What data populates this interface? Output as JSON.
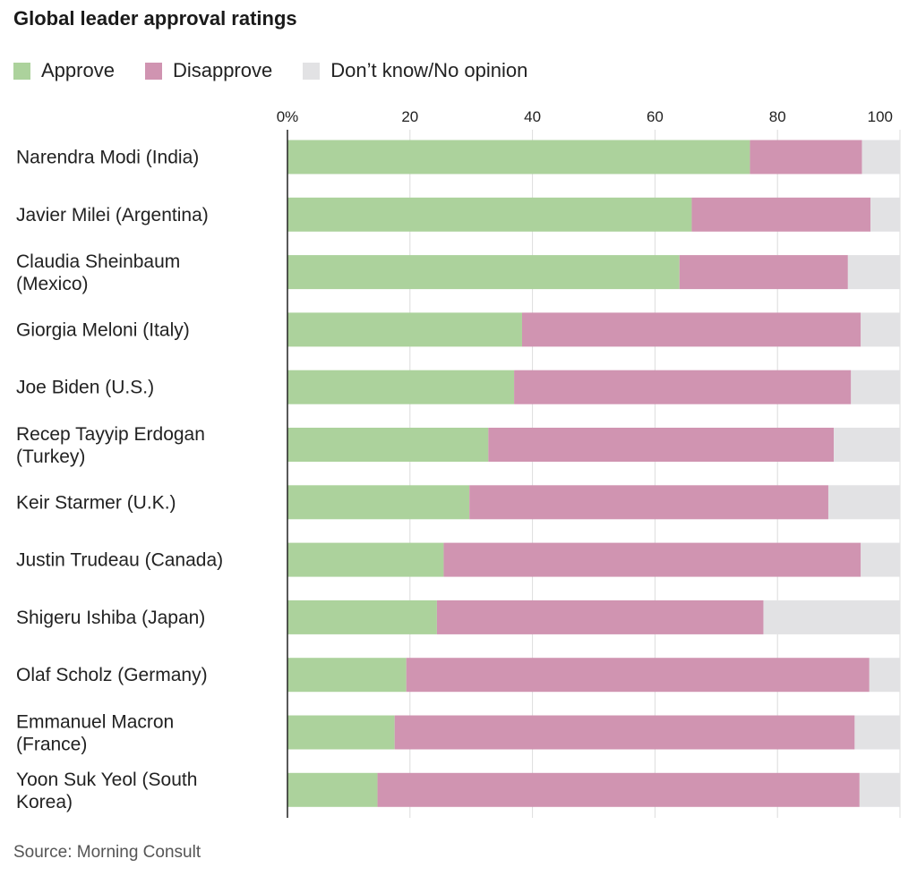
{
  "title": "Global leader approval ratings",
  "source": "Source: Morning Consult",
  "colors": {
    "approve": "#acd29c",
    "disapprove": "#d094b1",
    "no_opinion": "#e2e2e4",
    "grid": "#dcdcdc",
    "axis": "#222222"
  },
  "legend": {
    "approve": "Approve",
    "disapprove": "Disapprove",
    "no_opinion": "Don’t know/No opinion"
  },
  "chart_data": {
    "type": "bar",
    "orientation": "horizontal",
    "stacked": true,
    "title": "Global leader approval ratings",
    "xlim": [
      0,
      100
    ],
    "x_ticks": [
      0,
      20,
      40,
      60,
      80,
      100
    ],
    "x_tick_labels": [
      "0%",
      "20",
      "40",
      "60",
      "80",
      "100"
    ],
    "grid": true,
    "legend_position": "top-left",
    "categories": [
      [
        "Narendra Modi (India)"
      ],
      [
        "Javier Milei (Argentina)"
      ],
      [
        "Claudia Sheinbaum",
        "(Mexico)"
      ],
      [
        "Giorgia Meloni (Italy)"
      ],
      [
        "Joe Biden (U.S.)"
      ],
      [
        "Recep Tayyip Erdogan",
        "(Turkey)"
      ],
      [
        "Keir Starmer (U.K.)"
      ],
      [
        "Justin Trudeau (Canada)"
      ],
      [
        "Shigeru Ishiba (Japan)"
      ],
      [
        "Olaf Scholz (Germany)"
      ],
      [
        "Emmanuel Macron",
        "(France)"
      ],
      [
        "Yoon Suk Yeol (South",
        "Korea)"
      ]
    ],
    "series": [
      {
        "name": "Approve",
        "values": [
          75.5,
          66,
          64,
          38.3,
          37,
          32.8,
          29.7,
          25.5,
          24.4,
          19.4,
          17.5,
          14.7
        ]
      },
      {
        "name": "Disapprove",
        "values": [
          18.3,
          29.2,
          27.5,
          55.3,
          55,
          56.4,
          58.6,
          68.1,
          53.3,
          75.6,
          75.1,
          78.7
        ]
      },
      {
        "name": "Don’t know/No opinion",
        "values": [
          6.2,
          4.8,
          8.5,
          6.4,
          8,
          10.8,
          11.7,
          6.4,
          22.3,
          5,
          7.4,
          6.6
        ]
      }
    ]
  }
}
